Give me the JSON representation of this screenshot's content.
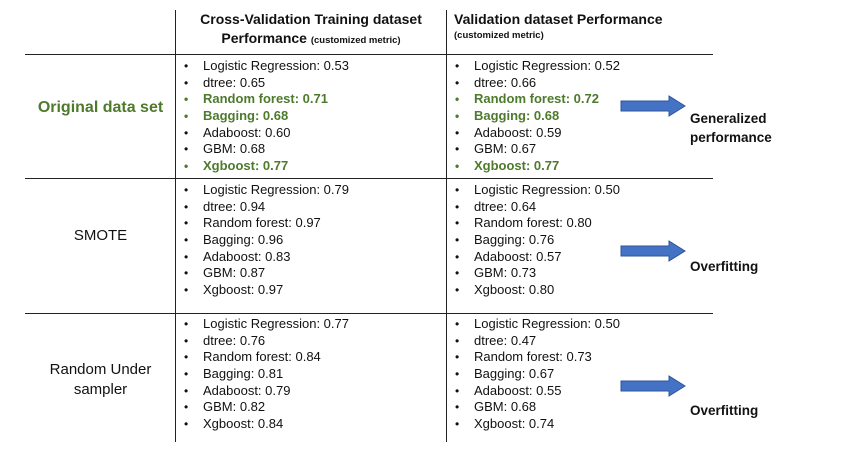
{
  "header": {
    "col1_title": "Cross-Validation Training dataset",
    "col1_title_line2": "Performance",
    "col1_metric": "(customized metric)",
    "col2_title": "Validation dataset Performance",
    "col2_metric": "(customized metric)"
  },
  "rows": [
    {
      "label": "Original data set",
      "train": [
        {
          "text": "Logistic Regression: 0.53",
          "highlight": false
        },
        {
          "text": "dtree: 0.65",
          "highlight": false
        },
        {
          "text": "Random forest: 0.71",
          "highlight": true
        },
        {
          "text": "Bagging: 0.68",
          "highlight": true
        },
        {
          "text": "Adaboost: 0.60",
          "highlight": false
        },
        {
          "text": "GBM: 0.68",
          "highlight": false
        },
        {
          "text": "Xgboost: 0.77",
          "highlight": true
        }
      ],
      "val": [
        {
          "text": "Logistic Regression: 0.52",
          "highlight": false
        },
        {
          "text": "dtree: 0.66",
          "highlight": false
        },
        {
          "text": "Random forest: 0.72",
          "highlight": true
        },
        {
          "text": "Bagging: 0.68",
          "highlight": true
        },
        {
          "text": "Adaboost: 0.59",
          "highlight": false
        },
        {
          "text": "GBM: 0.67",
          "highlight": false
        },
        {
          "text": "Xgboost: 0.77",
          "highlight": true
        }
      ],
      "outcome_line1": "Generalized",
      "outcome_line2": "performance"
    },
    {
      "label": "SMOTE",
      "train": [
        {
          "text": "Logistic Regression: 0.79",
          "highlight": false
        },
        {
          "text": "dtree: 0.94",
          "highlight": false
        },
        {
          "text": "Random forest: 0.97",
          "highlight": false
        },
        {
          "text": "Bagging: 0.96",
          "highlight": false
        },
        {
          "text": "Adaboost: 0.83",
          "highlight": false
        },
        {
          "text": "GBM: 0.87",
          "highlight": false
        },
        {
          "text": "Xgboost: 0.97",
          "highlight": false
        }
      ],
      "val": [
        {
          "text": "Logistic Regression: 0.50",
          "highlight": false
        },
        {
          "text": "dtree: 0.64",
          "highlight": false
        },
        {
          "text": "Random forest: 0.80",
          "highlight": false
        },
        {
          "text": "Bagging: 0.76",
          "highlight": false
        },
        {
          "text": "Adaboost: 0.57",
          "highlight": false
        },
        {
          "text": "GBM: 0.73",
          "highlight": false
        },
        {
          "text": "Xgboost: 0.80",
          "highlight": false
        }
      ],
      "outcome_line1": "Overfitting"
    },
    {
      "label_line1": "Random Under",
      "label_line2": "sampler",
      "train": [
        {
          "text": "Logistic Regression: 0.77",
          "highlight": false
        },
        {
          "text": "dtree: 0.76",
          "highlight": false
        },
        {
          "text": "Random forest: 0.84",
          "highlight": false
        },
        {
          "text": "Bagging: 0.81",
          "highlight": false
        },
        {
          "text": "Adaboost: 0.79",
          "highlight": false
        },
        {
          "text": "GBM: 0.82",
          "highlight": false
        },
        {
          "text": "Xgboost: 0.84",
          "highlight": false
        }
      ],
      "val": [
        {
          "text": "Logistic Regression: 0.50",
          "highlight": false
        },
        {
          "text": "dtree: 0.47",
          "highlight": false
        },
        {
          "text": "Random forest: 0.73",
          "highlight": false
        },
        {
          "text": "Bagging: 0.67",
          "highlight": false
        },
        {
          "text": "Adaboost: 0.55",
          "highlight": false
        },
        {
          "text": "GBM: 0.68",
          "highlight": false
        },
        {
          "text": "Xgboost: 0.74",
          "highlight": false
        }
      ],
      "outcome_line1": "Overfitting"
    }
  ],
  "colors": {
    "highlight": "#4e7a2c",
    "arrow": "#4472c4",
    "arrow_stroke": "#2f5597"
  }
}
